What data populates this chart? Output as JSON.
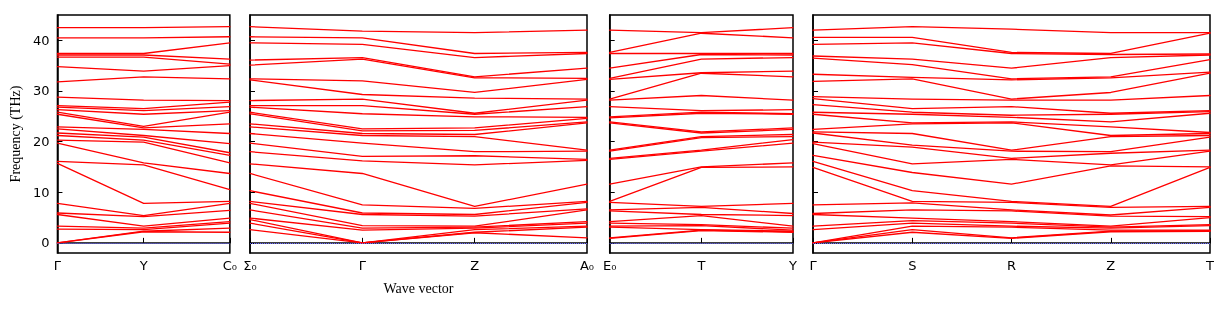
{
  "chart_data": [
    {
      "type": "line",
      "ylabel": "Frequency (THz)",
      "categories": [
        "Γ",
        "Y",
        "C₀"
      ],
      "ylim": [
        -2,
        45
      ],
      "yticks": [
        0,
        10,
        20,
        30,
        40
      ],
      "grid": false,
      "marker": "none",
      "ref_lines": [
        {
          "axis": "y",
          "value": 0,
          "color": "#6666ff",
          "line_style": "dotted"
        }
      ],
      "series": [
        {
          "color": "#ff0000",
          "values": [
            42.5,
            42.5,
            42.7
          ]
        },
        {
          "color": "#ff0000",
          "values": [
            40.5,
            40.5,
            40.7
          ]
        },
        {
          "color": "#ff0000",
          "values": [
            37.4,
            37.4,
            39.5
          ]
        },
        {
          "color": "#ff0000",
          "values": [
            37.1,
            37.1,
            36.3
          ]
        },
        {
          "color": "#ff0000",
          "values": [
            36.7,
            36.7,
            35.3
          ]
        },
        {
          "color": "#ff0000",
          "values": [
            34.8,
            33.9,
            35.0
          ]
        },
        {
          "color": "#ff0000",
          "values": [
            31.8,
            32.8,
            32.4
          ]
        },
        {
          "color": "#ff0000",
          "values": [
            28.8,
            28.2,
            28.1
          ]
        },
        {
          "color": "#ff0000",
          "values": [
            27.1,
            26.5,
            27.8
          ]
        },
        {
          "color": "#ff0000",
          "values": [
            26.8,
            26.1,
            26.9
          ]
        },
        {
          "color": "#ff0000",
          "values": [
            26.3,
            25.4,
            26.1
          ]
        },
        {
          "color": "#ff0000",
          "values": [
            25.8,
            23.0,
            25.8
          ]
        },
        {
          "color": "#ff0000",
          "values": [
            25.4,
            22.7,
            23.5
          ]
        },
        {
          "color": "#ff0000",
          "values": [
            22.9,
            22.4,
            21.6
          ]
        },
        {
          "color": "#ff0000",
          "values": [
            22.5,
            21.2,
            19.6
          ]
        },
        {
          "color": "#ff0000",
          "values": [
            21.7,
            20.9,
            17.8
          ]
        },
        {
          "color": "#ff0000",
          "values": [
            21.2,
            20.3,
            17.3
          ]
        },
        {
          "color": "#ff0000",
          "values": [
            20.3,
            19.9,
            15.8
          ]
        },
        {
          "color": "#ff0000",
          "values": [
            19.7,
            15.8,
            13.7
          ]
        },
        {
          "color": "#ff0000",
          "values": [
            16.1,
            15.4,
            10.5
          ]
        },
        {
          "color": "#ff0000",
          "values": [
            15.7,
            7.8,
            8.2
          ]
        },
        {
          "color": "#ff0000",
          "values": [
            7.8,
            5.4,
            7.8
          ]
        },
        {
          "color": "#ff0000",
          "values": [
            5.9,
            5.2,
            6.4
          ]
        },
        {
          "color": "#ff0000",
          "values": [
            5.6,
            3.3,
            4.9
          ]
        },
        {
          "color": "#ff0000",
          "values": [
            3.3,
            2.9,
            4.2
          ]
        },
        {
          "color": "#ff0000",
          "values": [
            2.7,
            2.6,
            3.9
          ]
        },
        {
          "color": "#ff0000",
          "values": [
            0,
            2.3,
            2.9
          ]
        },
        {
          "color": "#ff0000",
          "values": [
            0,
            2.2,
            2.1
          ]
        }
      ]
    },
    {
      "type": "line",
      "xlabel": "Wave vector",
      "tick_labels": "x",
      "categories": [
        "Σ₀",
        "Γ",
        "Z",
        "A₀"
      ],
      "ylim": [
        -2,
        45
      ],
      "yticks": [
        0,
        10,
        20,
        30,
        40
      ],
      "grid": false,
      "marker": "none",
      "ref_lines": [
        {
          "axis": "y",
          "value": 0,
          "color": "#6666ff",
          "line_style": "dotted"
        }
      ],
      "series": [
        {
          "color": "#ff0000",
          "values": [
            42.7,
            41.8,
            41.5,
            42.0
          ]
        },
        {
          "color": "#ff0000",
          "values": [
            40.7,
            40.5,
            37.4,
            37.6
          ]
        },
        {
          "color": "#ff0000",
          "values": [
            39.5,
            39.2,
            36.6,
            37.4
          ]
        },
        {
          "color": "#ff0000",
          "values": [
            36.1,
            36.6,
            32.8,
            34.5
          ]
        },
        {
          "color": "#ff0000",
          "values": [
            35.1,
            36.3,
            32.6,
            32.5
          ]
        },
        {
          "color": "#ff0000",
          "values": [
            32.4,
            32.0,
            29.7,
            32.3
          ]
        },
        {
          "color": "#ff0000",
          "values": [
            32.2,
            29.3,
            28.6,
            28.4
          ]
        },
        {
          "color": "#ff0000",
          "values": [
            28.1,
            28.4,
            25.6,
            28.2
          ]
        },
        {
          "color": "#ff0000",
          "values": [
            27.1,
            27.1,
            25.4,
            26.9
          ]
        },
        {
          "color": "#ff0000",
          "values": [
            26.8,
            25.5,
            24.9,
            24.8
          ]
        },
        {
          "color": "#ff0000",
          "values": [
            25.8,
            22.5,
            22.7,
            24.6
          ]
        },
        {
          "color": "#ff0000",
          "values": [
            25.5,
            22.1,
            22.2,
            23.9
          ]
        },
        {
          "color": "#ff0000",
          "values": [
            23.5,
            21.6,
            21.4,
            23.7
          ]
        },
        {
          "color": "#ff0000",
          "values": [
            22.9,
            21.2,
            21.0,
            18.3
          ]
        },
        {
          "color": "#ff0000",
          "values": [
            21.6,
            19.7,
            18.0,
            18.1
          ]
        },
        {
          "color": "#ff0000",
          "values": [
            19.7,
            17.1,
            17.2,
            16.5
          ]
        },
        {
          "color": "#ff0000",
          "values": [
            18.0,
            16.2,
            15.4,
            16.3
          ]
        },
        {
          "color": "#ff0000",
          "values": [
            15.6,
            13.7,
            7.2,
            11.6
          ]
        },
        {
          "color": "#ff0000",
          "values": [
            13.7,
            7.5,
            6.8,
            8.2
          ]
        },
        {
          "color": "#ff0000",
          "values": [
            10.3,
            5.9,
            5.6,
            8.0
          ]
        },
        {
          "color": "#ff0000",
          "values": [
            8.2,
            5.6,
            5.3,
            6.7
          ]
        },
        {
          "color": "#ff0000",
          "values": [
            7.8,
            3.4,
            3.3,
            6.5
          ]
        },
        {
          "color": "#ff0000",
          "values": [
            6.5,
            2.9,
            3.1,
            4.2
          ]
        },
        {
          "color": "#ff0000",
          "values": [
            4.9,
            2.5,
            2.9,
            3.9
          ]
        },
        {
          "color": "#ff0000",
          "values": [
            4.6,
            0,
            2.6,
            3.3
          ]
        },
        {
          "color": "#ff0000",
          "values": [
            3.9,
            0,
            2.1,
            3.1
          ]
        },
        {
          "color": "#ff0000",
          "values": [
            2.6,
            0,
            2.0,
            1.0
          ]
        }
      ]
    },
    {
      "type": "line",
      "tick_labels": "x",
      "categories": [
        "E₀",
        "T",
        "Y"
      ],
      "ylim": [
        -2,
        45
      ],
      "yticks": [
        0,
        10,
        20,
        30,
        40
      ],
      "grid": false,
      "marker": "none",
      "ref_lines": [
        {
          "axis": "y",
          "value": 0,
          "color": "#6666ff",
          "line_style": "dotted"
        }
      ],
      "series": [
        {
          "color": "#ff0000",
          "values": [
            42.0,
            41.5,
            42.5
          ]
        },
        {
          "color": "#ff0000",
          "values": [
            37.6,
            41.4,
            40.5
          ]
        },
        {
          "color": "#ff0000",
          "values": [
            37.4,
            37.4,
            37.4
          ]
        },
        {
          "color": "#ff0000",
          "values": [
            34.5,
            37.2,
            37.1
          ]
        },
        {
          "color": "#ff0000",
          "values": [
            32.5,
            36.3,
            36.6
          ]
        },
        {
          "color": "#ff0000",
          "values": [
            32.3,
            33.6,
            33.9
          ]
        },
        {
          "color": "#ff0000",
          "values": [
            28.4,
            33.5,
            32.8
          ]
        },
        {
          "color": "#ff0000",
          "values": [
            28.2,
            29.1,
            28.2
          ]
        },
        {
          "color": "#ff0000",
          "values": [
            26.9,
            26.1,
            26.3
          ]
        },
        {
          "color": "#ff0000",
          "values": [
            24.9,
            25.8,
            25.5
          ]
        },
        {
          "color": "#ff0000",
          "values": [
            24.7,
            25.6,
            25.4
          ]
        },
        {
          "color": "#ff0000",
          "values": [
            23.9,
            21.9,
            22.7
          ]
        },
        {
          "color": "#ff0000",
          "values": [
            23.7,
            21.7,
            22.4
          ]
        },
        {
          "color": "#ff0000",
          "values": [
            18.3,
            21.0,
            21.4
          ]
        },
        {
          "color": "#ff0000",
          "values": [
            18.1,
            20.8,
            21.0
          ]
        },
        {
          "color": "#ff0000",
          "values": [
            16.7,
            18.3,
            20.4
          ]
        },
        {
          "color": "#ff0000",
          "values": [
            16.5,
            18.1,
            19.7
          ]
        },
        {
          "color": "#ff0000",
          "values": [
            11.6,
            15.0,
            15.8
          ]
        },
        {
          "color": "#ff0000",
          "values": [
            8.2,
            14.9,
            15.0
          ]
        },
        {
          "color": "#ff0000",
          "values": [
            8.0,
            7.2,
            7.8
          ]
        },
        {
          "color": "#ff0000",
          "values": [
            6.5,
            7.0,
            5.8
          ]
        },
        {
          "color": "#ff0000",
          "values": [
            6.3,
            5.6,
            5.4
          ]
        },
        {
          "color": "#ff0000",
          "values": [
            4.2,
            5.4,
            3.3
          ]
        },
        {
          "color": "#ff0000",
          "values": [
            3.9,
            3.6,
            2.9
          ]
        },
        {
          "color": "#ff0000",
          "values": [
            3.3,
            3.4,
            2.5
          ]
        },
        {
          "color": "#ff0000",
          "values": [
            3.1,
            2.6,
            2.3
          ]
        },
        {
          "color": "#ff0000",
          "values": [
            1.0,
            2.5,
            2.2
          ]
        },
        {
          "color": "#ff0000",
          "values": [
            0.9,
            2.4,
            2.1
          ]
        }
      ]
    },
    {
      "type": "line",
      "tick_labels": "x",
      "categories": [
        "Γ",
        "S",
        "R",
        "Z",
        "T"
      ],
      "ylim": [
        -2,
        45
      ],
      "yticks": [
        0,
        10,
        20,
        30,
        40
      ],
      "grid": false,
      "marker": "none",
      "ref_lines": [
        {
          "axis": "y",
          "value": 0,
          "color": "#6666ff",
          "line_style": "dotted"
        }
      ],
      "series": [
        {
          "color": "#ff0000",
          "values": [
            42.0,
            42.7,
            42.2,
            41.5,
            41.5
          ]
        },
        {
          "color": "#ff0000",
          "values": [
            40.6,
            40.6,
            37.6,
            37.4,
            41.4
          ]
        },
        {
          "color": "#ff0000",
          "values": [
            39.2,
            39.5,
            37.4,
            37.2,
            37.3
          ]
        },
        {
          "color": "#ff0000",
          "values": [
            36.9,
            36.3,
            34.5,
            36.6,
            37.1
          ]
        },
        {
          "color": "#ff0000",
          "values": [
            36.5,
            35.2,
            32.4,
            32.8,
            36.2
          ]
        },
        {
          "color": "#ff0000",
          "values": [
            33.3,
            32.7,
            32.2,
            32.6,
            33.7
          ]
        },
        {
          "color": "#ff0000",
          "values": [
            31.9,
            32.4,
            28.4,
            29.7,
            33.5
          ]
        },
        {
          "color": "#ff0000",
          "values": [
            28.9,
            28.4,
            28.2,
            28.2,
            29.1
          ]
        },
        {
          "color": "#ff0000",
          "values": [
            28.5,
            26.5,
            26.9,
            25.6,
            26.1
          ]
        },
        {
          "color": "#ff0000",
          "values": [
            27.3,
            25.8,
            25.2,
            25.4,
            25.9
          ]
        },
        {
          "color": "#ff0000",
          "values": [
            25.8,
            25.4,
            24.8,
            23.9,
            25.6
          ]
        },
        {
          "color": "#ff0000",
          "values": [
            25.4,
            23.7,
            23.9,
            22.9,
            21.8
          ]
        },
        {
          "color": "#ff0000",
          "values": [
            22.4,
            23.5,
            23.7,
            21.2,
            21.6
          ]
        },
        {
          "color": "#ff0000",
          "values": [
            21.9,
            21.6,
            18.3,
            21.0,
            21.2
          ]
        },
        {
          "color": "#ff0000",
          "values": [
            21.7,
            19.3,
            18.1,
            18.0,
            20.9
          ]
        },
        {
          "color": "#ff0000",
          "values": [
            19.9,
            18.9,
            16.7,
            17.7,
            18.3
          ]
        },
        {
          "color": "#ff0000",
          "values": [
            19.6,
            15.6,
            16.5,
            15.4,
            18.1
          ]
        },
        {
          "color": "#ff0000",
          "values": [
            17.3,
            13.9,
            11.6,
            15.2,
            15.0
          ]
        },
        {
          "color": "#ff0000",
          "values": [
            16.1,
            10.3,
            8.2,
            7.2,
            14.9
          ]
        },
        {
          "color": "#ff0000",
          "values": [
            14.9,
            8.2,
            8.0,
            7.0,
            7.2
          ]
        },
        {
          "color": "#ff0000",
          "values": [
            7.5,
            7.9,
            6.5,
            5.5,
            7.0
          ]
        },
        {
          "color": "#ff0000",
          "values": [
            5.8,
            6.5,
            6.3,
            5.3,
            5.2
          ]
        },
        {
          "color": "#ff0000",
          "values": [
            5.6,
            4.9,
            4.2,
            3.3,
            5.0
          ]
        },
        {
          "color": "#ff0000",
          "values": [
            3.3,
            4.4,
            3.9,
            3.1,
            3.6
          ]
        },
        {
          "color": "#ff0000",
          "values": [
            2.6,
            3.9,
            3.3,
            2.9,
            3.4
          ]
        },
        {
          "color": "#ff0000",
          "values": [
            0,
            3.3,
            3.1,
            2.5,
            2.5
          ]
        },
        {
          "color": "#ff0000",
          "values": [
            0,
            2.6,
            1.0,
            2.3,
            2.4
          ]
        },
        {
          "color": "#ff0000",
          "values": [
            0,
            2.1,
            0.9,
            2.2,
            2.3
          ]
        }
      ]
    }
  ]
}
